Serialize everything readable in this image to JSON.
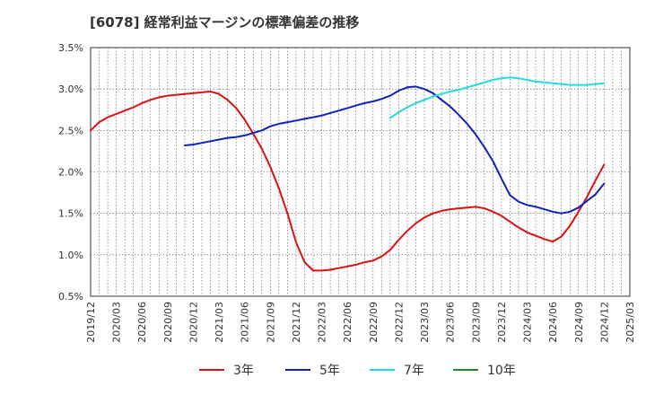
{
  "chart_data": {
    "type": "line",
    "title": "[6078]  経常利益マージンの標準偏差の推移",
    "xlabel": "",
    "ylabel": "",
    "x_ticks": [
      "2019/12",
      "2020/03",
      "2020/06",
      "2020/09",
      "2020/12",
      "2021/03",
      "2021/06",
      "2021/09",
      "2021/12",
      "2022/03",
      "2022/06",
      "2022/09",
      "2022/12",
      "2023/03",
      "2023/06",
      "2023/09",
      "2023/12",
      "2024/03",
      "2024/06",
      "2024/09",
      "2024/12",
      "2025/03"
    ],
    "y_ticks": [
      "0.5%",
      "1.0%",
      "1.5%",
      "2.0%",
      "2.5%",
      "3.0%",
      "3.5%"
    ],
    "ylim": [
      0.5,
      3.5
    ],
    "y_unit": "%",
    "grid": true,
    "legend_position": "bottom",
    "series": [
      {
        "name": "3年",
        "color": "#dd1111",
        "points": [
          [
            "2019/12",
            2.5
          ],
          [
            "2020/01",
            2.6
          ],
          [
            "2020/02",
            2.66
          ],
          [
            "2020/03",
            2.7
          ],
          [
            "2020/04",
            2.74
          ],
          [
            "2020/05",
            2.78
          ],
          [
            "2020/06",
            2.83
          ],
          [
            "2020/07",
            2.87
          ],
          [
            "2020/08",
            2.9
          ],
          [
            "2020/09",
            2.92
          ],
          [
            "2020/10",
            2.93
          ],
          [
            "2020/11",
            2.94
          ],
          [
            "2020/12",
            2.95
          ],
          [
            "2021/01",
            2.96
          ],
          [
            "2021/02",
            2.97
          ],
          [
            "2021/03",
            2.94
          ],
          [
            "2021/04",
            2.87
          ],
          [
            "2021/05",
            2.77
          ],
          [
            "2021/06",
            2.63
          ],
          [
            "2021/07",
            2.46
          ],
          [
            "2021/08",
            2.28
          ],
          [
            "2021/09",
            2.06
          ],
          [
            "2021/10",
            1.8
          ],
          [
            "2021/11",
            1.5
          ],
          [
            "2021/12",
            1.15
          ],
          [
            "2022/01",
            0.91
          ],
          [
            "2022/02",
            0.81
          ],
          [
            "2022/03",
            0.81
          ],
          [
            "2022/04",
            0.82
          ],
          [
            "2022/05",
            0.84
          ],
          [
            "2022/06",
            0.86
          ],
          [
            "2022/07",
            0.88
          ],
          [
            "2022/08",
            0.91
          ],
          [
            "2022/09",
            0.93
          ],
          [
            "2022/10",
            0.98
          ],
          [
            "2022/11",
            1.06
          ],
          [
            "2022/12",
            1.18
          ],
          [
            "2023/01",
            1.29
          ],
          [
            "2023/02",
            1.38
          ],
          [
            "2023/03",
            1.45
          ],
          [
            "2023/04",
            1.5
          ],
          [
            "2023/05",
            1.53
          ],
          [
            "2023/06",
            1.55
          ],
          [
            "2023/07",
            1.56
          ],
          [
            "2023/08",
            1.57
          ],
          [
            "2023/09",
            1.58
          ],
          [
            "2023/10",
            1.56
          ],
          [
            "2023/11",
            1.52
          ],
          [
            "2023/12",
            1.47
          ],
          [
            "2024/01",
            1.4
          ],
          [
            "2024/02",
            1.33
          ],
          [
            "2024/03",
            1.27
          ],
          [
            "2024/04",
            1.23
          ],
          [
            "2024/05",
            1.19
          ],
          [
            "2024/06",
            1.16
          ],
          [
            "2024/07",
            1.22
          ],
          [
            "2024/08",
            1.35
          ],
          [
            "2024/09",
            1.52
          ],
          [
            "2024/10",
            1.7
          ],
          [
            "2024/11",
            1.9
          ],
          [
            "2024/12",
            2.09
          ]
        ]
      },
      {
        "name": "5年",
        "color": "#1122bb",
        "points": [
          [
            "2020/11",
            2.32
          ],
          [
            "2020/12",
            2.33
          ],
          [
            "2021/01",
            2.35
          ],
          [
            "2021/02",
            2.37
          ],
          [
            "2021/03",
            2.39
          ],
          [
            "2021/04",
            2.41
          ],
          [
            "2021/05",
            2.42
          ],
          [
            "2021/06",
            2.44
          ],
          [
            "2021/07",
            2.47
          ],
          [
            "2021/08",
            2.5
          ],
          [
            "2021/09",
            2.55
          ],
          [
            "2021/10",
            2.58
          ],
          [
            "2021/11",
            2.6
          ],
          [
            "2021/12",
            2.62
          ],
          [
            "2022/01",
            2.64
          ],
          [
            "2022/02",
            2.66
          ],
          [
            "2022/03",
            2.68
          ],
          [
            "2022/04",
            2.71
          ],
          [
            "2022/05",
            2.74
          ],
          [
            "2022/06",
            2.77
          ],
          [
            "2022/07",
            2.8
          ],
          [
            "2022/08",
            2.83
          ],
          [
            "2022/09",
            2.85
          ],
          [
            "2022/10",
            2.88
          ],
          [
            "2022/11",
            2.92
          ],
          [
            "2022/12",
            2.98
          ],
          [
            "2023/01",
            3.02
          ],
          [
            "2023/02",
            3.03
          ],
          [
            "2023/03",
            3.0
          ],
          [
            "2023/04",
            2.95
          ],
          [
            "2023/05",
            2.87
          ],
          [
            "2023/06",
            2.79
          ],
          [
            "2023/07",
            2.69
          ],
          [
            "2023/08",
            2.58
          ],
          [
            "2023/09",
            2.45
          ],
          [
            "2023/10",
            2.3
          ],
          [
            "2023/11",
            2.13
          ],
          [
            "2023/12",
            1.92
          ],
          [
            "2024/01",
            1.72
          ],
          [
            "2024/02",
            1.64
          ],
          [
            "2024/03",
            1.6
          ],
          [
            "2024/04",
            1.58
          ],
          [
            "2024/05",
            1.55
          ],
          [
            "2024/06",
            1.52
          ],
          [
            "2024/07",
            1.5
          ],
          [
            "2024/08",
            1.52
          ],
          [
            "2024/09",
            1.57
          ],
          [
            "2024/10",
            1.65
          ],
          [
            "2024/11",
            1.73
          ],
          [
            "2024/12",
            1.86
          ]
        ]
      },
      {
        "name": "7年",
        "color": "#22dddd",
        "points": [
          [
            "2022/11",
            2.65
          ],
          [
            "2022/12",
            2.72
          ],
          [
            "2023/01",
            2.78
          ],
          [
            "2023/02",
            2.83
          ],
          [
            "2023/03",
            2.87
          ],
          [
            "2023/04",
            2.91
          ],
          [
            "2023/05",
            2.94
          ],
          [
            "2023/06",
            2.97
          ],
          [
            "2023/07",
            2.99
          ],
          [
            "2023/08",
            3.02
          ],
          [
            "2023/09",
            3.05
          ],
          [
            "2023/10",
            3.08
          ],
          [
            "2023/11",
            3.11
          ],
          [
            "2023/12",
            3.13
          ],
          [
            "2024/01",
            3.14
          ],
          [
            "2024/02",
            3.13
          ],
          [
            "2024/03",
            3.11
          ],
          [
            "2024/04",
            3.09
          ],
          [
            "2024/05",
            3.08
          ],
          [
            "2024/06",
            3.07
          ],
          [
            "2024/07",
            3.06
          ],
          [
            "2024/08",
            3.05
          ],
          [
            "2024/09",
            3.05
          ],
          [
            "2024/10",
            3.05
          ],
          [
            "2024/11",
            3.06
          ],
          [
            "2024/12",
            3.07
          ]
        ]
      },
      {
        "name": "10年",
        "color": "#228822",
        "points": []
      }
    ]
  }
}
